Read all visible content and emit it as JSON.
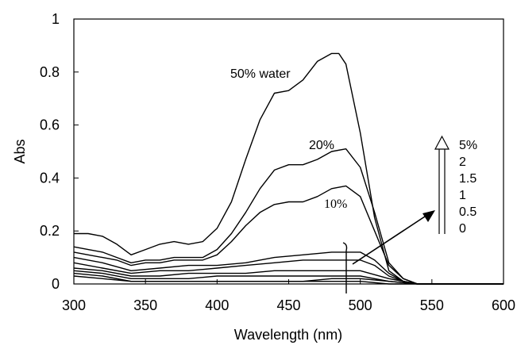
{
  "chart_data": {
    "type": "line",
    "title": "",
    "xlabel": "Wavelength (nm)",
    "ylabel": "Abs",
    "xlim": [
      300,
      600
    ],
    "ylim": [
      0,
      1
    ],
    "xticks": [
      300,
      350,
      400,
      450,
      500,
      550,
      600
    ],
    "yticks": [
      0,
      0.2,
      0.4,
      0.6,
      0.8,
      1
    ],
    "ytick_labels": [
      "0",
      "0.2",
      "0.4",
      "0.6",
      "0.8",
      "1"
    ],
    "grid": false,
    "series": [
      {
        "name": "50% water",
        "x": [
          300,
          310,
          320,
          330,
          340,
          350,
          360,
          370,
          380,
          390,
          400,
          410,
          420,
          430,
          440,
          450,
          460,
          470,
          480,
          485,
          490,
          500,
          510,
          520,
          530,
          540,
          550,
          600
        ],
        "y": [
          0.19,
          0.19,
          0.18,
          0.15,
          0.11,
          0.13,
          0.15,
          0.16,
          0.15,
          0.16,
          0.21,
          0.31,
          0.47,
          0.62,
          0.72,
          0.73,
          0.77,
          0.84,
          0.87,
          0.87,
          0.83,
          0.57,
          0.25,
          0.05,
          0.01,
          0.0,
          0.0,
          0.0
        ]
      },
      {
        "name": "20%",
        "x": [
          300,
          310,
          320,
          330,
          340,
          350,
          360,
          370,
          380,
          390,
          400,
          410,
          420,
          430,
          440,
          450,
          460,
          470,
          480,
          490,
          500,
          510,
          520,
          530,
          540,
          550,
          600
        ],
        "y": [
          0.14,
          0.13,
          0.12,
          0.1,
          0.08,
          0.09,
          0.09,
          0.1,
          0.1,
          0.1,
          0.13,
          0.19,
          0.27,
          0.36,
          0.43,
          0.45,
          0.45,
          0.47,
          0.5,
          0.51,
          0.44,
          0.27,
          0.08,
          0.02,
          0.0,
          0.0,
          0.0
        ]
      },
      {
        "name": "10%",
        "x": [
          300,
          310,
          320,
          330,
          340,
          350,
          360,
          370,
          380,
          390,
          400,
          410,
          420,
          430,
          440,
          450,
          460,
          470,
          480,
          490,
          500,
          510,
          520,
          530,
          540,
          550,
          600
        ],
        "y": [
          0.12,
          0.11,
          0.1,
          0.09,
          0.07,
          0.08,
          0.08,
          0.09,
          0.09,
          0.09,
          0.11,
          0.16,
          0.22,
          0.27,
          0.3,
          0.31,
          0.31,
          0.33,
          0.36,
          0.37,
          0.33,
          0.2,
          0.07,
          0.02,
          0.0,
          0.0,
          0.0
        ]
      },
      {
        "name": "5%",
        "x": [
          300,
          320,
          340,
          360,
          380,
          400,
          420,
          440,
          460,
          480,
          500,
          510,
          520,
          530,
          540,
          550,
          600
        ],
        "y": [
          0.1,
          0.08,
          0.05,
          0.06,
          0.07,
          0.07,
          0.08,
          0.1,
          0.11,
          0.12,
          0.12,
          0.09,
          0.04,
          0.01,
          0.0,
          0.0,
          0.0
        ]
      },
      {
        "name": "2",
        "x": [
          300,
          320,
          340,
          360,
          380,
          400,
          420,
          440,
          460,
          480,
          500,
          510,
          520,
          530,
          540,
          550,
          600
        ],
        "y": [
          0.08,
          0.06,
          0.04,
          0.05,
          0.05,
          0.06,
          0.07,
          0.08,
          0.09,
          0.09,
          0.09,
          0.07,
          0.03,
          0.01,
          0.0,
          0.0,
          0.0
        ]
      },
      {
        "name": "1.5",
        "x": [
          300,
          320,
          340,
          360,
          380,
          400,
          420,
          440,
          460,
          480,
          500,
          520,
          540,
          550,
          600
        ],
        "y": [
          0.06,
          0.05,
          0.03,
          0.03,
          0.04,
          0.04,
          0.04,
          0.05,
          0.05,
          0.05,
          0.05,
          0.02,
          0.0,
          0.0,
          0.0
        ]
      },
      {
        "name": "1",
        "x": [
          300,
          320,
          340,
          360,
          380,
          400,
          420,
          440,
          460,
          480,
          500,
          520,
          540,
          550,
          600
        ],
        "y": [
          0.05,
          0.04,
          0.02,
          0.02,
          0.02,
          0.03,
          0.03,
          0.03,
          0.03,
          0.03,
          0.03,
          0.01,
          0.0,
          0.0,
          0.0
        ]
      },
      {
        "name": "0.5",
        "x": [
          300,
          320,
          340,
          360,
          380,
          400,
          420,
          440,
          460,
          480,
          500,
          520,
          540,
          550,
          600
        ],
        "y": [
          0.04,
          0.03,
          0.01,
          0.01,
          0.01,
          0.01,
          0.01,
          0.01,
          0.01,
          0.02,
          0.02,
          0.01,
          0.0,
          0.0,
          0.0
        ]
      },
      {
        "name": "0",
        "x": [
          300,
          320,
          340,
          360,
          380,
          400,
          420,
          440,
          460,
          480,
          500,
          520,
          540,
          550,
          600
        ],
        "y": [
          0.03,
          0.02,
          0.01,
          0.01,
          0.01,
          0.01,
          0.01,
          0.01,
          0.01,
          0.01,
          0.01,
          0.0,
          0.0,
          0.0,
          0.0
        ]
      }
    ],
    "annotations": {
      "label_50": "50% water",
      "label_20": "20%",
      "label_10": "10%",
      "arrow_legend": [
        "5%",
        "2",
        "1.5",
        "1",
        "0.5",
        "0"
      ]
    }
  }
}
